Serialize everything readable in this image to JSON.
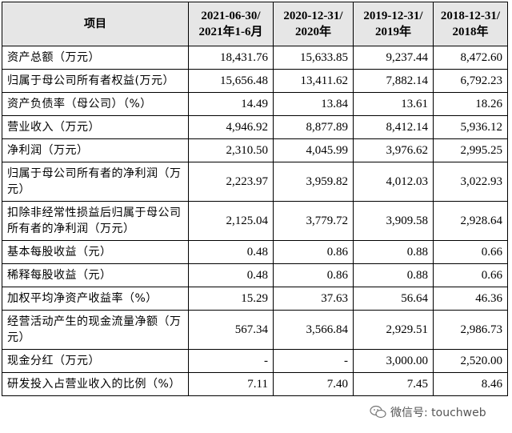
{
  "table": {
    "header": [
      [
        "项目"
      ],
      [
        "2021-06-30/",
        "2021年1-6月"
      ],
      [
        "2020-12-31/",
        "2020年"
      ],
      [
        "2019-12-31/",
        "2019年"
      ],
      [
        "2018-12-31/",
        "2018年"
      ]
    ],
    "rows": [
      [
        "资产总额（万元）",
        "18,431.76",
        "15,633.85",
        "9,237.44",
        "8,472.60"
      ],
      [
        "归属于母公司所有者权益(万元）",
        "15,656.48",
        "13,411.62",
        "7,882.14",
        "6,792.23"
      ],
      [
        "资产负债率（母公司）（%）",
        "14.49",
        "13.84",
        "13.61",
        "18.26"
      ],
      [
        "营业收入（万元）",
        "4,946.92",
        "8,877.89",
        "8,412.14",
        "5,936.12"
      ],
      [
        "净利润（万元）",
        "2,310.50",
        "4,045.99",
        "3,976.62",
        "2,995.25"
      ],
      [
        "归属于母公司所有者的净利润（万元）",
        "2,223.97",
        "3,959.82",
        "4,012.03",
        "3,022.93"
      ],
      [
        "扣除非经常性损益后归属于母公司所有者的净利润（万元）",
        "2,125.04",
        "3,779.72",
        "3,909.58",
        "2,928.64"
      ],
      [
        "基本每股收益（元）",
        "0.48",
        "0.86",
        "0.88",
        "0.66"
      ],
      [
        "稀释每股收益（元）",
        "0.48",
        "0.86",
        "0.88",
        "0.66"
      ],
      [
        "加权平均净资产收益率（%）",
        "15.29",
        "37.63",
        "56.64",
        "46.36"
      ],
      [
        "经营活动产生的现金流量净额（万元）",
        "567.34",
        "3,566.84",
        "2,929.51",
        "2,986.73"
      ],
      [
        "现金分红（万元）",
        "-",
        "-",
        "3,000.00",
        "2,520.00"
      ],
      [
        "研发投入占营业收入的比例（%）",
        "7.11",
        "7.40",
        "7.45",
        "8.46"
      ]
    ]
  },
  "watermark": {
    "text": "微信号: touchweb"
  }
}
